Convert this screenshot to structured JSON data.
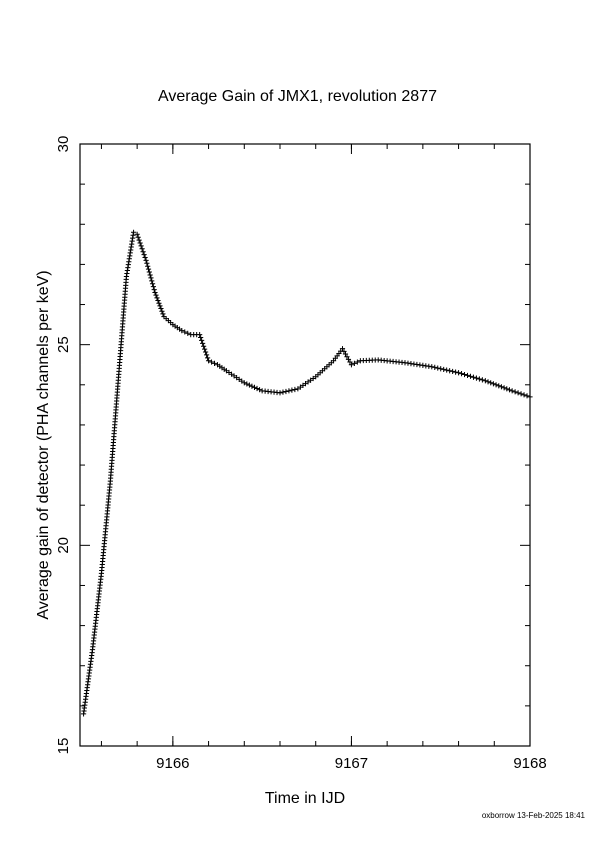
{
  "chart_data": {
    "type": "scatter",
    "marker": "plus",
    "title": "Average Gain of JMX1, revolution 2877",
    "xlabel": "Time in IJD",
    "ylabel": "Average gain of detector (PHA channels per keV)",
    "xlim": [
      9165.48,
      9168.0
    ],
    "ylim": [
      15,
      30
    ],
    "xticks": [
      "9166",
      "9167",
      "9168"
    ],
    "yticks": [
      "15",
      "20",
      "25",
      "30"
    ],
    "grid": false,
    "series": [
      {
        "values": [
          [
            9165.5,
            15.8
          ],
          [
            9165.55,
            17.4
          ],
          [
            9165.6,
            19.3
          ],
          [
            9165.65,
            21.6
          ],
          [
            9165.68,
            23.3
          ],
          [
            9165.71,
            25.0
          ],
          [
            9165.74,
            26.7
          ],
          [
            9165.78,
            27.8
          ],
          [
            9165.8,
            27.75
          ],
          [
            9165.85,
            27.1
          ],
          [
            9165.9,
            26.3
          ],
          [
            9165.95,
            25.7
          ],
          [
            9166.0,
            25.5
          ],
          [
            9166.05,
            25.35
          ],
          [
            9166.1,
            25.25
          ],
          [
            9166.15,
            25.25
          ],
          [
            9166.2,
            24.6
          ],
          [
            9166.25,
            24.5
          ],
          [
            9166.3,
            24.35
          ],
          [
            9166.4,
            24.05
          ],
          [
            9166.5,
            23.85
          ],
          [
            9166.6,
            23.8
          ],
          [
            9166.7,
            23.9
          ],
          [
            9166.8,
            24.2
          ],
          [
            9166.9,
            24.6
          ],
          [
            9166.95,
            24.9
          ],
          [
            9167.0,
            24.5
          ],
          [
            9167.05,
            24.6
          ],
          [
            9167.15,
            24.62
          ],
          [
            9167.3,
            24.55
          ],
          [
            9167.45,
            24.45
          ],
          [
            9167.6,
            24.3
          ],
          [
            9167.75,
            24.1
          ],
          [
            9167.9,
            23.85
          ],
          [
            9168.0,
            23.7
          ]
        ]
      }
    ]
  },
  "footer": "oxborrow 13-Feb-2025 18:41"
}
